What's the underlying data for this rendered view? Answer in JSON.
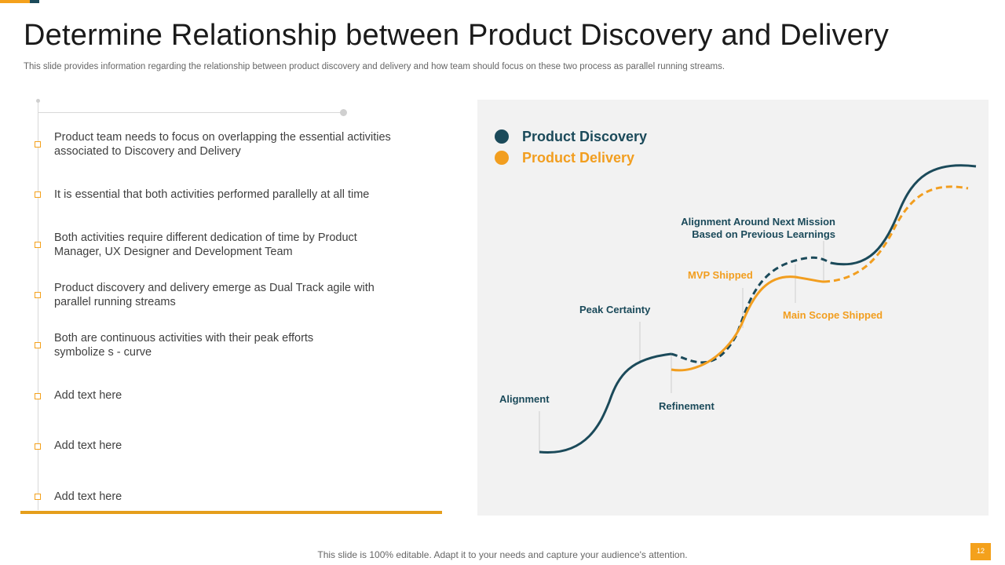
{
  "header": {
    "title": "Determine Relationship between Product Discovery and Delivery",
    "subtitle": "This slide provides information regarding the relationship between product discovery and delivery and how team should focus on these two process as parallel running streams."
  },
  "bullets": [
    "Product team needs to focus on overlapping the essential activities associated to Discovery and Delivery",
    "It is essential that both activities performed parallelly  at all time",
    "Both activities require different dedication of time by Product Manager, UX Designer and Development Team",
    "Product discovery and delivery emerge as Dual Track agile with parallel running streams",
    "Both are continuous activities with their peak efforts symbolize s - curve",
    "Add text here",
    "Add text here",
    "Add text here"
  ],
  "diagram": {
    "legend": {
      "discovery": "Product Discovery",
      "delivery": "Product Delivery"
    },
    "labels": {
      "alignment": "Alignment",
      "peak_certainty": "Peak Certainty",
      "refinement": "Refinement",
      "mvp_shipped": "MVP Shipped",
      "main_scope_shipped": "Main Scope Shipped",
      "next_mission_1": "Alignment Around Next Mission",
      "next_mission_2": "Based on Previous Learnings"
    },
    "colors": {
      "discovery": "#1B4A5A",
      "delivery": "#F29E1F"
    }
  },
  "footer": {
    "note": "This slide is 100% editable. Adapt it to your needs and capture your audience's attention.",
    "page_number": "12"
  }
}
